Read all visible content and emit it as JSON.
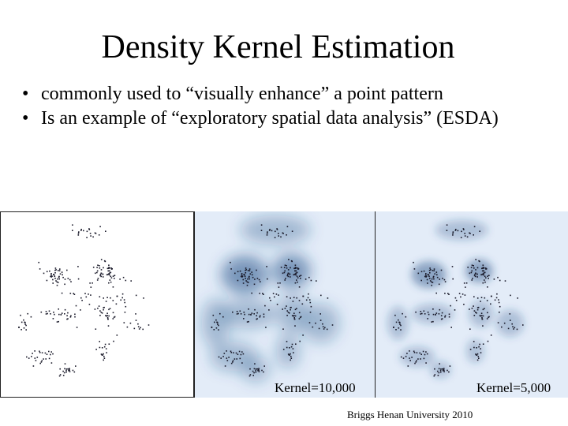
{
  "slide": {
    "title": "Density Kernel Estimation",
    "bullets": [
      "commonly used to “visually enhance” a point pattern",
      "Is an example of “exploratory spatial data analysis” (ESDA)"
    ],
    "bullet_symbol": "•"
  },
  "figures": {
    "panel_labels": [
      "Kernel=10,000",
      "Kernel=5,000"
    ],
    "colors": {
      "background_light": "#e3ecf8",
      "density": "#1f4e86",
      "points": "#1a1a2a"
    }
  },
  "footer": {
    "credit": "Briggs  Henan University 2010"
  }
}
